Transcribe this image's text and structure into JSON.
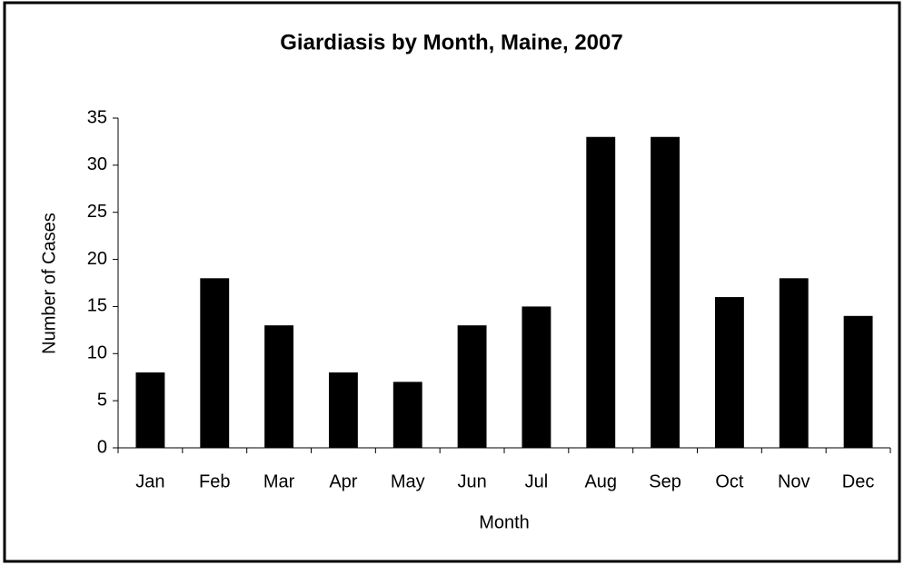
{
  "chart_data": {
    "type": "bar",
    "title": "Giardiasis by Month, Maine, 2007",
    "x_label": "Month",
    "y_label": "Number of Cases",
    "categories": [
      "Jan",
      "Feb",
      "Mar",
      "Apr",
      "May",
      "Jun",
      "Jul",
      "Aug",
      "Sep",
      "Oct",
      "Nov",
      "Dec"
    ],
    "values": [
      8,
      18,
      13,
      8,
      7,
      13,
      15,
      33,
      33,
      16,
      18,
      14
    ],
    "color": "#000000",
    "ylim": [
      0,
      35
    ],
    "yticks": [
      0,
      5,
      10,
      15,
      20,
      25,
      30,
      35
    ],
    "grid": false
  }
}
